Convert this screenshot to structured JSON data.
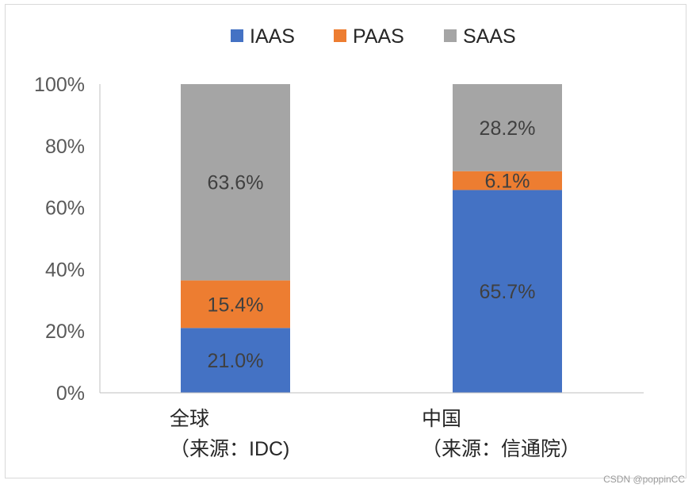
{
  "chart_data": {
    "type": "bar",
    "stacked": true,
    "categories": [
      [
        "全球",
        "（来源：IDC)"
      ],
      [
        "中国",
        "（来源：信通院）"
      ]
    ],
    "series": [
      {
        "name": "IAAS",
        "color": "#4472c4",
        "values": [
          21.0,
          65.7
        ]
      },
      {
        "name": "PAAS",
        "color": "#ed7d31",
        "values": [
          15.4,
          6.1
        ]
      },
      {
        "name": "SAAS",
        "color": "#a5a5a5",
        "values": [
          63.6,
          28.2
        ]
      }
    ],
    "data_labels": [
      [
        "21.0%",
        "65.7%"
      ],
      [
        "15.4%",
        "6.1%"
      ],
      [
        "63.6%",
        "28.2%"
      ]
    ],
    "y_ticks": [
      "0%",
      "20%",
      "40%",
      "60%",
      "80%",
      "100%"
    ],
    "ylim": [
      0,
      100
    ],
    "legend_position": "top",
    "grid": false
  },
  "watermark": "CSDN @poppinCC"
}
